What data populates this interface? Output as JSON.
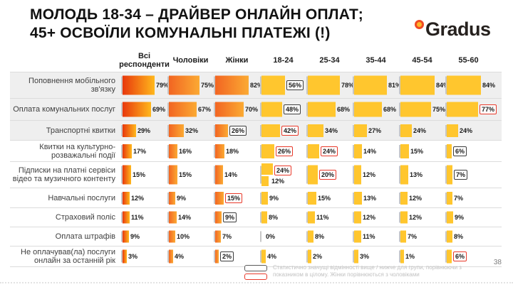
{
  "title": {
    "line1": "МОЛОДЬ 18-34 – ДРАЙВЕР ОНЛАЙН ОПЛАТ;",
    "line2": "45+ ОСВОЇЛИ КОМУНАЛЬНІ ПЛАТЕЖІ (!)"
  },
  "logo": {
    "text": "Gradus"
  },
  "page_number": "38",
  "legend": {
    "text": "Статистично значущі відмінності вище / нижче для групи, порівнюючи з показником в цілому. Жінки порівнюються з чоловіками"
  },
  "colors": {
    "all_bar_start": "#e8380d",
    "all_bar_end": "#ffb81c",
    "gender_bar_start": "#f26522",
    "gender_bar_end": "#fbaa33",
    "age_bar": "#ffc62e",
    "box_red": "#e8392a",
    "box_black": "#3d3d3d",
    "logo_accent": "#f04a23"
  },
  "chart_data": {
    "type": "bar",
    "orientation": "horizontal",
    "unit": "%",
    "title": "МОЛОДЬ 18-34 – ДРАЙВЕР ОНЛАЙН ОПЛАТ; 45+ ОСВОЇЛИ КОМУНАЛЬНІ ПЛАТЕЖІ (!)",
    "legend_note": "Статистично значущі відмінності вище / нижче для групи, порівнюючи з показником в цілому. Жінки порівнюються з чоловіками",
    "box_meaning": {
      "red": "статистично значуще вище",
      "black": "статистично значуще нижче"
    },
    "columns": [
      "Всі респонденти",
      "Чоловіки",
      "Жінки",
      "18-24",
      "25-34",
      "35-44",
      "45-54",
      "55-60"
    ],
    "rows": [
      {
        "label": "Поповнення мобільного зв'язку",
        "values": [
          79,
          75,
          82,
          56,
          78,
          81,
          84,
          84
        ],
        "boxes": [
          null,
          null,
          null,
          "black",
          null,
          null,
          null,
          null
        ]
      },
      {
        "label": "Оплата комунальних послуг",
        "values": [
          69,
          67,
          70,
          48,
          68,
          68,
          75,
          77
        ],
        "boxes": [
          null,
          null,
          null,
          "black",
          null,
          null,
          null,
          "red"
        ]
      },
      {
        "label": "Транспортні квитки",
        "values": [
          29,
          32,
          26,
          42,
          34,
          27,
          24,
          24
        ],
        "boxes": [
          null,
          null,
          "black",
          "red",
          null,
          null,
          null,
          null
        ]
      },
      {
        "label": "Квитки на культурно-розважальні події",
        "values": [
          17,
          16,
          18,
          26,
          24,
          14,
          15,
          6
        ],
        "boxes": [
          null,
          null,
          null,
          "red",
          "red",
          null,
          null,
          "black"
        ]
      },
      {
        "label": "Підписки на платні сервіси відео та музичного контенту",
        "values": [
          15,
          15,
          14,
          24,
          20,
          12,
          13,
          7
        ],
        "boxes": [
          null,
          null,
          null,
          "red",
          "red",
          null,
          null,
          "black"
        ],
        "extra_bar": {
          "column_index": 3,
          "value": 12
        }
      },
      {
        "label": "Навчальні послуги",
        "values": [
          12,
          9,
          15,
          9,
          15,
          13,
          12,
          7
        ],
        "boxes": [
          null,
          null,
          "red",
          null,
          null,
          null,
          null,
          null
        ]
      },
      {
        "label": "Страховий поліс",
        "values": [
          11,
          14,
          9,
          8,
          11,
          12,
          12,
          9
        ],
        "boxes": [
          null,
          null,
          "black",
          null,
          null,
          null,
          null,
          null
        ]
      },
      {
        "label": "Оплата штрафів",
        "values": [
          9,
          10,
          7,
          0,
          8,
          11,
          7,
          8
        ],
        "boxes": [
          null,
          null,
          null,
          null,
          null,
          null,
          null,
          null
        ]
      },
      {
        "label": "Не оплачував(ла) послуги онлайн за останній рік",
        "values": [
          3,
          4,
          2,
          4,
          2,
          3,
          1,
          6
        ],
        "boxes": [
          null,
          null,
          "black",
          null,
          null,
          null,
          null,
          "red"
        ]
      }
    ]
  }
}
